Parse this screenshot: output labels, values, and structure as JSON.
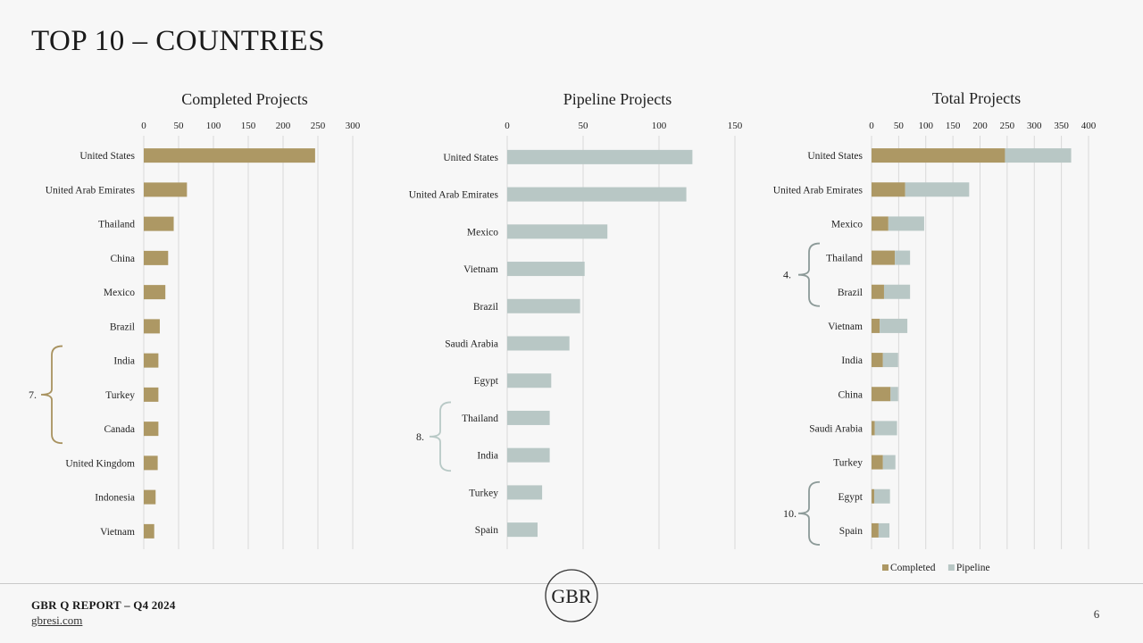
{
  "page": {
    "title": "TOP 10 – COUNTRIES",
    "footer_report": "GBR Q REPORT – Q4 2024",
    "footer_site": "gbresi.com",
    "page_number": "6",
    "logo_letters": "GBR"
  },
  "colors": {
    "completed": "#ad9864",
    "pipeline": "#b8c7c5",
    "grid": "#d9d9d9",
    "bracket_gold": "#a8925f",
    "bracket_teal": "#b8c9c6",
    "bracket_grey": "#8c9a98"
  },
  "chart_data": [
    {
      "type": "bar",
      "orientation": "horizontal",
      "title": "Completed Projects",
      "categories": [
        "United States",
        "United Arab Emirates",
        "Thailand",
        "China",
        "Mexico",
        "Brazil",
        "India",
        "Turkey",
        "Canada",
        "United Kingdom",
        "Indonesia",
        "Vietnam"
      ],
      "series": [
        {
          "name": "Completed",
          "values": [
            246,
            62,
            43,
            35,
            31,
            23,
            21,
            21,
            21,
            20,
            17,
            15
          ]
        }
      ],
      "xlim": [
        0,
        300
      ],
      "ticks": [
        0,
        50,
        100,
        150,
        200,
        250,
        300
      ],
      "annotation": {
        "label": "7.",
        "from": "India",
        "to": "Canada"
      }
    },
    {
      "type": "bar",
      "orientation": "horizontal",
      "title": "Pipeline Projects",
      "categories": [
        "United States",
        "United Arab Emirates",
        "Mexico",
        "Vietnam",
        "Brazil",
        "Saudi Arabia",
        "Egypt",
        "Thailand",
        "India",
        "Turkey",
        "Spain"
      ],
      "series": [
        {
          "name": "Pipeline",
          "values": [
            122,
            118,
            66,
            51,
            48,
            41,
            29,
            28,
            28,
            23,
            20
          ]
        }
      ],
      "xlim": [
        0,
        150
      ],
      "ticks": [
        0,
        50,
        100,
        150
      ],
      "annotation": {
        "label": "8.",
        "from": "Thailand",
        "to": "India"
      }
    },
    {
      "type": "bar",
      "orientation": "horizontal",
      "stacked": true,
      "title": "Total Projects",
      "categories": [
        "United States",
        "United Arab Emirates",
        "Mexico",
        "Thailand",
        "Brazil",
        "Vietnam",
        "India",
        "China",
        "Saudi Arabia",
        "Turkey",
        "Egypt",
        "Spain"
      ],
      "series": [
        {
          "name": "Completed",
          "values": [
            246,
            62,
            31,
            43,
            23,
            15,
            21,
            35,
            6,
            21,
            5,
            13
          ]
        },
        {
          "name": "Pipeline",
          "values": [
            122,
            118,
            66,
            28,
            48,
            51,
            28,
            14,
            41,
            23,
            29,
            20
          ]
        }
      ],
      "xlim": [
        0,
        400
      ],
      "ticks": [
        0,
        50,
        100,
        150,
        200,
        250,
        300,
        350,
        400
      ],
      "legend": {
        "position": "bottom",
        "entries": [
          "Completed",
          "Pipeline"
        ]
      },
      "annotations": [
        {
          "label": "4.",
          "from": "Thailand",
          "to": "Brazil"
        },
        {
          "label": "10.",
          "from": "Egypt",
          "to": "Spain"
        }
      ]
    }
  ]
}
